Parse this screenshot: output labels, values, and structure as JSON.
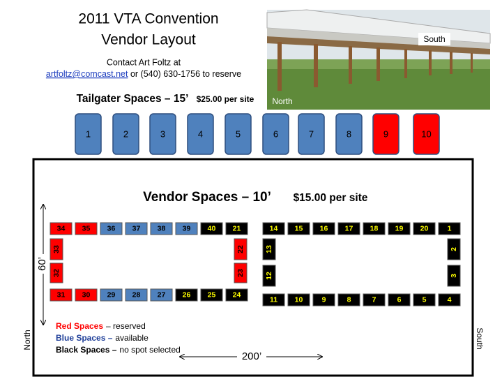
{
  "header": {
    "title_lines": [
      "2011 VTA Convention",
      "Vendor Layout"
    ],
    "contact": {
      "line1": "Contact Art Foltz at",
      "email": "artfoltz@comcast.net",
      "rest": "or (540) 630-1756 to reserve"
    }
  },
  "photo": {
    "south_label": "South",
    "north_label": "North"
  },
  "tailgater": {
    "heading": "Tailgater Spaces – 15’",
    "price": "$25.00 per site",
    "spaces": [
      {
        "label": "1",
        "color": "#4f81bd"
      },
      {
        "label": "2",
        "color": "#4f81bd"
      },
      {
        "label": "3",
        "color": "#4f81bd"
      },
      {
        "label": "4",
        "color": "#4f81bd"
      },
      {
        "label": "5",
        "color": "#4f81bd"
      },
      {
        "label": "6",
        "color": "#4f81bd"
      },
      {
        "label": "7",
        "color": "#4f81bd"
      },
      {
        "label": "8",
        "color": "#4f81bd"
      },
      {
        "label": "9",
        "color": "#ff0000"
      },
      {
        "label": "10",
        "color": "#ff0000"
      }
    ]
  },
  "vendor": {
    "heading": "Vendor Spaces – 10’",
    "price": "$15.00 per site",
    "left_block": {
      "top": [
        {
          "label": "34",
          "color": "#ff0000"
        },
        {
          "label": "35",
          "color": "#ff0000"
        },
        {
          "label": "36",
          "color": "#4f81bd"
        },
        {
          "label": "37",
          "color": "#4f81bd"
        },
        {
          "label": "38",
          "color": "#4f81bd"
        },
        {
          "label": "39",
          "color": "#4f81bd"
        },
        {
          "label": "40",
          "color": "#000000"
        },
        {
          "label": "21",
          "color": "#000000"
        }
      ],
      "left": [
        {
          "label": "33",
          "color": "#ff0000"
        },
        {
          "label": "32",
          "color": "#ff0000"
        }
      ],
      "right": [
        {
          "label": "22",
          "color": "#ff0000"
        },
        {
          "label": "23",
          "color": "#ff0000"
        }
      ],
      "bottom": [
        {
          "label": "31",
          "color": "#ff0000"
        },
        {
          "label": "30",
          "color": "#ff0000"
        },
        {
          "label": "29",
          "color": "#4f81bd"
        },
        {
          "label": "28",
          "color": "#4f81bd"
        },
        {
          "label": "27",
          "color": "#4f81bd"
        },
        {
          "label": "26",
          "color": "#000000"
        },
        {
          "label": "25",
          "color": "#000000"
        },
        {
          "label": "24",
          "color": "#000000"
        }
      ]
    },
    "right_block": {
      "top": [
        {
          "label": "14",
          "color": "#000000"
        },
        {
          "label": "15",
          "color": "#000000"
        },
        {
          "label": "16",
          "color": "#000000"
        },
        {
          "label": "17",
          "color": "#000000"
        },
        {
          "label": "18",
          "color": "#000000"
        },
        {
          "label": "19",
          "color": "#000000"
        },
        {
          "label": "20",
          "color": "#000000"
        },
        {
          "label": "1",
          "color": "#000000"
        }
      ],
      "left": [
        {
          "label": "13",
          "color": "#000000"
        },
        {
          "label": "12",
          "color": "#000000"
        }
      ],
      "right": [
        {
          "label": "2",
          "color": "#000000"
        },
        {
          "label": "3",
          "color": "#000000"
        }
      ],
      "bottom": [
        {
          "label": "11",
          "color": "#000000"
        },
        {
          "label": "10",
          "color": "#000000"
        },
        {
          "label": "9",
          "color": "#000000"
        },
        {
          "label": "8",
          "color": "#000000"
        },
        {
          "label": "7",
          "color": "#000000"
        },
        {
          "label": "6",
          "color": "#000000"
        },
        {
          "label": "5",
          "color": "#000000"
        },
        {
          "label": "4",
          "color": "#000000"
        }
      ]
    },
    "width_label": "60’",
    "length_label": "200’",
    "north_label": "North",
    "south_label": "South"
  },
  "legend": [
    {
      "term": "Red Spaces",
      "desc": "– reserved",
      "color": "#ff0000"
    },
    {
      "term": "Blue Spaces –",
      "desc": "available",
      "color": "#1f3f99"
    },
    {
      "term": "Black Spaces –",
      "desc": "no spot selected",
      "color": "#000000"
    }
  ]
}
